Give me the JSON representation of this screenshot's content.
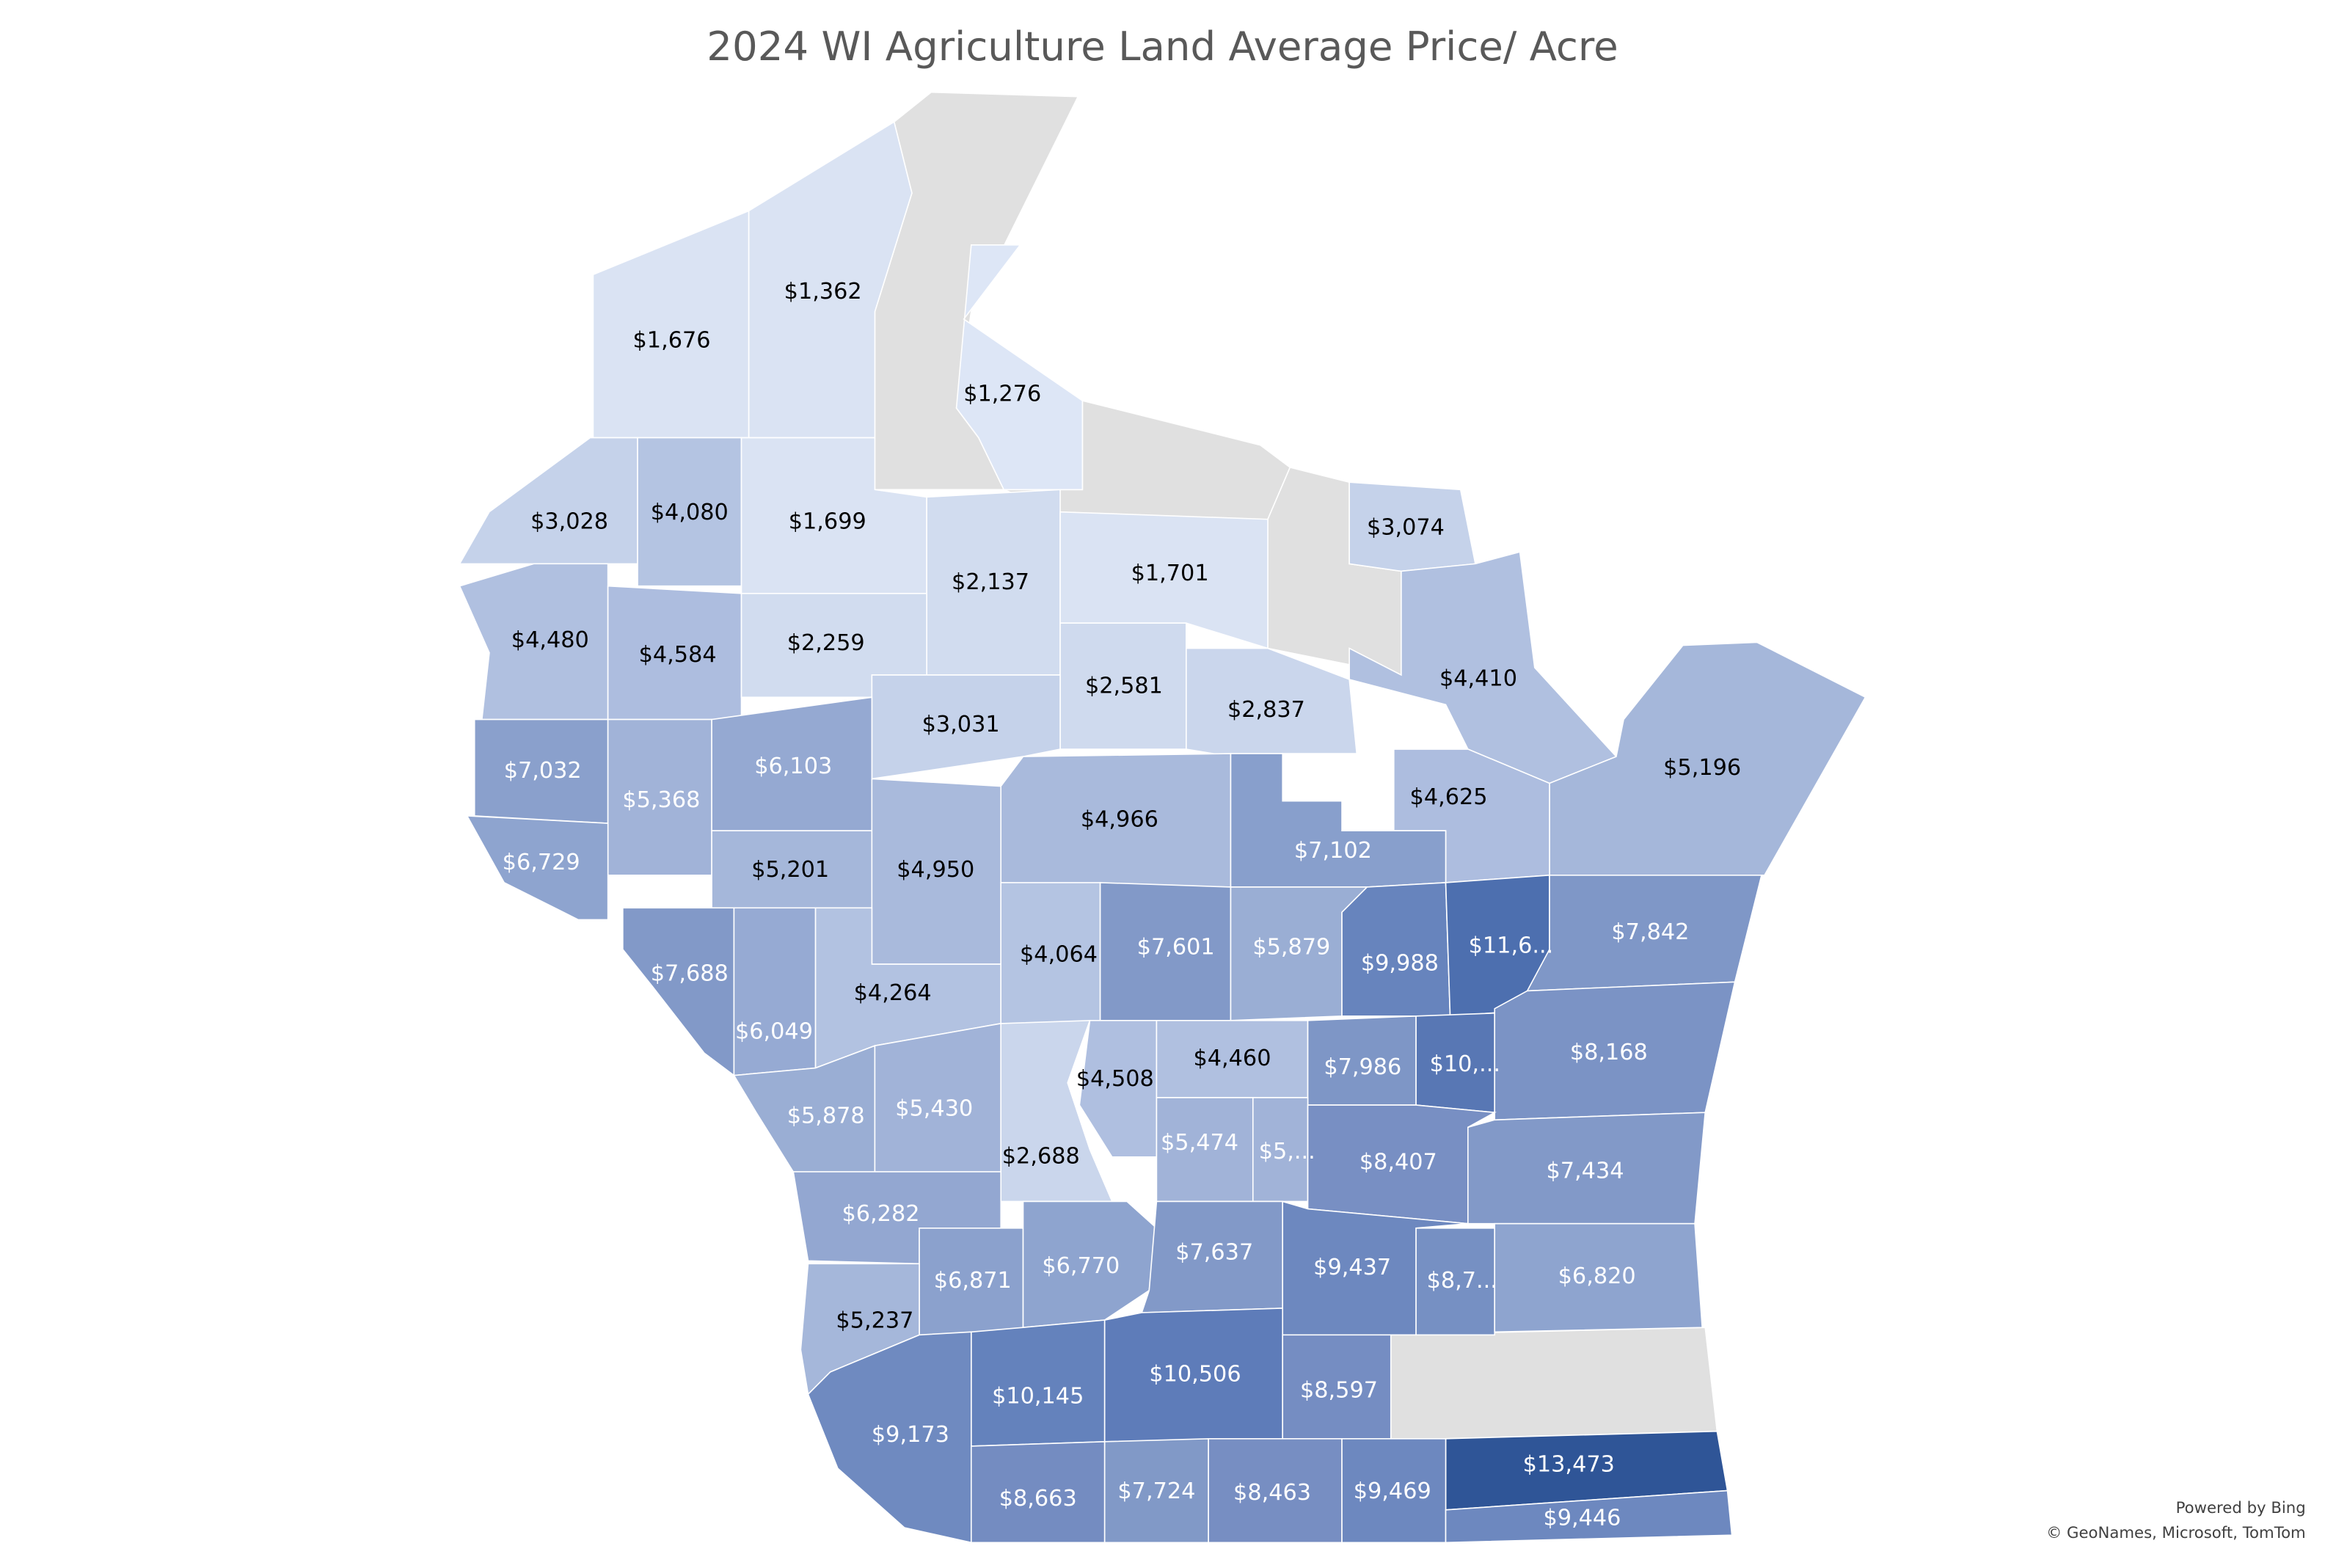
{
  "title": "2024 WI Agriculture Land Average Price/ Acre",
  "regions": [
    {
      "label": "$1,676",
      "color": "#dae3f3",
      "label_color": "#000000"
    },
    {
      "label": "$1,362",
      "color": "#dae3f3",
      "label_color": "#000000"
    },
    {
      "label": "$1,276",
      "color": "#dde6f6",
      "label_color": "#000000"
    },
    {
      "label": "$3,028",
      "color": "#c5d2ea",
      "label_color": "#000000"
    },
    {
      "label": "$4,080",
      "color": "#b4c4e2",
      "label_color": "#000000"
    },
    {
      "label": "$1,699",
      "color": "#dae3f3",
      "label_color": "#000000"
    },
    {
      "label": "$2,137",
      "color": "#d1dcef",
      "label_color": "#000000"
    },
    {
      "label": "$1,701",
      "color": "#dae3f3",
      "label_color": "#000000"
    },
    {
      "label": "$3,074",
      "color": "#c5d2ea",
      "label_color": "#000000"
    },
    {
      "label": "$4,480",
      "color": "#b0c0e0",
      "label_color": "#000000"
    },
    {
      "label": "$4,584",
      "color": "#adbddf",
      "label_color": "#000000"
    },
    {
      "label": "$2,259",
      "color": "#d1dcef",
      "label_color": "#000000"
    },
    {
      "label": "$4,410",
      "color": "#b0c0e0",
      "label_color": "#000000"
    },
    {
      "label": "$2,581",
      "color": "#cfdaee",
      "label_color": "#000000"
    },
    {
      "label": "$2,837",
      "color": "#cad6ec",
      "label_color": "#000000"
    },
    {
      "label": "$3,031",
      "color": "#c5d2ea",
      "label_color": "#000000"
    },
    {
      "label": "$5,196",
      "color": "#a5b7da",
      "label_color": "#000000"
    },
    {
      "label": "$7,032",
      "color": "#8aa0cc",
      "label_color": "#ffffff"
    },
    {
      "label": "$5,368",
      "color": "#a1b3d8",
      "label_color": "#ffffff"
    },
    {
      "label": "$6,103",
      "color": "#95a9d2",
      "label_color": "#ffffff"
    },
    {
      "label": "$4,966",
      "color": "#a9badc",
      "label_color": "#000000"
    },
    {
      "label": "$4,625",
      "color": "#adbddf",
      "label_color": "#000000"
    },
    {
      "label": "$7,102",
      "color": "#889fcc",
      "label_color": "#ffffff"
    },
    {
      "label": "$6,729",
      "color": "#8ea4cf",
      "label_color": "#ffffff"
    },
    {
      "label": "$5,201",
      "color": "#a5b7da",
      "label_color": "#000000"
    },
    {
      "label": "$4,950",
      "color": "#a9badc",
      "label_color": "#000000"
    },
    {
      "label": "$7,688",
      "color": "#8299c8",
      "label_color": "#ffffff"
    },
    {
      "label": "$6,049",
      "color": "#96aad3",
      "label_color": "#ffffff"
    },
    {
      "label": "$4,264",
      "color": "#b2c2e1",
      "label_color": "#000000"
    },
    {
      "label": "$4,064",
      "color": "#b4c4e2",
      "label_color": "#000000"
    },
    {
      "label": "$7,601",
      "color": "#8299c8",
      "label_color": "#ffffff"
    },
    {
      "label": "$5,879",
      "color": "#9aaed4",
      "label_color": "#ffffff"
    },
    {
      "label": "$9,988",
      "color": "#6784bd",
      "label_color": "#ffffff"
    },
    {
      "label": "$11,6...",
      "color": "#4d6faf",
      "label_color": "#ffffff"
    },
    {
      "label": "$7,842",
      "color": "#7f97c7",
      "label_color": "#ffffff"
    },
    {
      "label": "$5,878",
      "color": "#9aaed4",
      "label_color": "#ffffff"
    },
    {
      "label": "$5,430",
      "color": "#a1b3d8",
      "label_color": "#ffffff"
    },
    {
      "label": "$2,688",
      "color": "#cad6ec",
      "label_color": "#000000"
    },
    {
      "label": "$4,508",
      "color": "#afbfe0",
      "label_color": "#000000"
    },
    {
      "label": "$4,460",
      "color": "#b0c0e0",
      "label_color": "#000000"
    },
    {
      "label": "$7,986",
      "color": "#7e96c6",
      "label_color": "#ffffff"
    },
    {
      "label": "$10,...",
      "color": "#5877b4",
      "label_color": "#ffffff"
    },
    {
      "label": "$8,168",
      "color": "#7b93c5",
      "label_color": "#ffffff"
    },
    {
      "label": "$5,474",
      "color": "#a1b3d8",
      "label_color": "#ffffff"
    },
    {
      "label": "$5,...",
      "color": "#a1b3d8",
      "label_color": "#ffffff"
    },
    {
      "label": "$8,407",
      "color": "#788fc3",
      "label_color": "#ffffff"
    },
    {
      "label": "$7,434",
      "color": "#8299c8",
      "label_color": "#ffffff"
    },
    {
      "label": "$6,282",
      "color": "#93a7d1",
      "label_color": "#ffffff"
    },
    {
      "label": "$6,871",
      "color": "#8ba1cd",
      "label_color": "#ffffff"
    },
    {
      "label": "$6,770",
      "color": "#8ea4cf",
      "label_color": "#ffffff"
    },
    {
      "label": "$7,637",
      "color": "#8299c8",
      "label_color": "#ffffff"
    },
    {
      "label": "$9,437",
      "color": "#6d88bf",
      "label_color": "#ffffff"
    },
    {
      "label": "$8,7...",
      "color": "#7690c3",
      "label_color": "#ffffff"
    },
    {
      "label": "$6,820",
      "color": "#8ea4cf",
      "label_color": "#ffffff"
    },
    {
      "label": "$5,237",
      "color": "#a5b7da",
      "label_color": "#000000"
    },
    {
      "label": "$10,145",
      "color": "#6482bc",
      "label_color": "#ffffff"
    },
    {
      "label": "$10,506",
      "color": "#5e7cb9",
      "label_color": "#ffffff"
    },
    {
      "label": "$8,597",
      "color": "#758dc2",
      "label_color": "#ffffff"
    },
    {
      "label": "$9,173",
      "color": "#6f8ac0",
      "label_color": "#ffffff"
    },
    {
      "label": "$13,473",
      "color": "#2f5597",
      "label_color": "#ffffff"
    },
    {
      "label": "$8,663",
      "color": "#748cc1",
      "label_color": "#ffffff"
    },
    {
      "label": "$7,724",
      "color": "#8199c7",
      "label_color": "#ffffff"
    },
    {
      "label": "$8,463",
      "color": "#778ec2",
      "label_color": "#ffffff"
    },
    {
      "label": "$9,469",
      "color": "#6d88bf",
      "label_color": "#ffffff"
    },
    {
      "label": "$9,446",
      "color": "#6d88bf",
      "label_color": "#ffffff"
    }
  ],
  "attribution": [
    "Powered by Bing",
    "© GeoNames, Microsoft, TomTom"
  ]
}
